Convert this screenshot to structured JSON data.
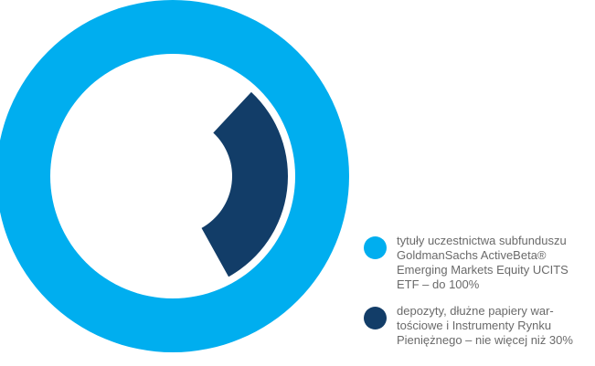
{
  "chart_data": {
    "type": "pie",
    "title": "",
    "categories": [
      "tytuły uczestnictwa subfunduszu GoldmanSachs ActiveBeta® Emerging Markets Equity UCITS ETF – do 100%",
      "depozyty, dłużne papiery wartościowe i Instrumenty Rynku Pieniężnego – nie więcej niż 30%"
    ],
    "series": [
      {
        "values": [
          100,
          30
        ],
        "colors": [
          "#00aeef",
          "#123d68"
        ]
      }
    ],
    "legend_position": "bottom-right"
  },
  "legend": {
    "items": [
      {
        "lines": [
          "tytuły uczestnictwa subfunduszu",
          "GoldmanSachs ActiveBeta®",
          "Emerging Markets Equity UCITS",
          "ETF – do 100%"
        ],
        "color": "#00aeef"
      },
      {
        "lines": [
          "depozyty, dłużne papiery war-",
          "tościowe i Instrumenty Rynku",
          "Pieniężnego – nie więcej niż 30%"
        ],
        "color": "#123d68"
      }
    ]
  }
}
